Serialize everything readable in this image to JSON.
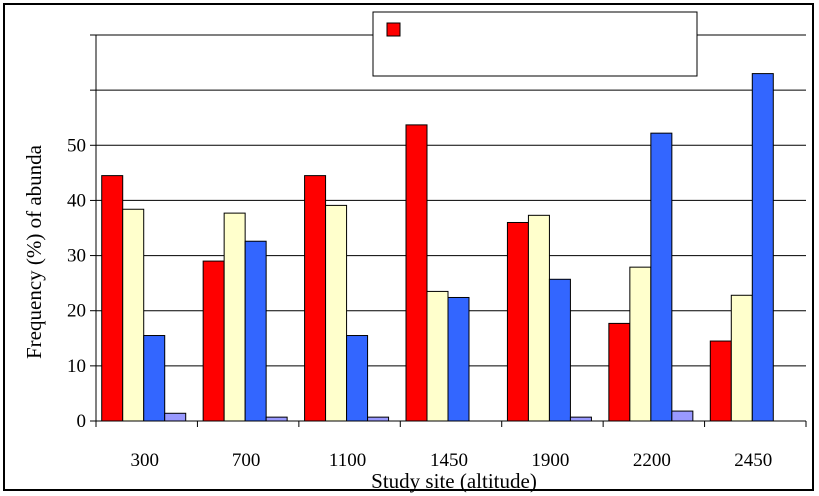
{
  "chart_data": {
    "type": "bar",
    "title": "",
    "xlabel": "Study site (altitude)",
    "ylabel": "Frequency (%) of abunda",
    "categories": [
      "300",
      "700",
      "1100",
      "1450",
      "1900",
      "2200",
      "2450"
    ],
    "ylim": [
      0,
      70
    ],
    "yticks": [
      0,
      10,
      20,
      30,
      40,
      50
    ],
    "grid": true,
    "legend": {
      "placement": "top-center",
      "entries": [
        ""
      ]
    },
    "series": [
      {
        "color": "#ff0000",
        "values": [
          44.5,
          29,
          44.5,
          53.7,
          36,
          17.7,
          14.5
        ]
      },
      {
        "color": "#ffffcc",
        "values": [
          38.4,
          37.7,
          39.1,
          23.5,
          37.3,
          27.9,
          22.8
        ]
      },
      {
        "color": "#3366ff",
        "values": [
          15.5,
          32.6,
          15.5,
          22.4,
          25.7,
          52.2,
          63
        ]
      },
      {
        "color": "#9999ff",
        "values": [
          1.4,
          0.7,
          0.7,
          0,
          0.7,
          1.8,
          0
        ]
      }
    ]
  }
}
